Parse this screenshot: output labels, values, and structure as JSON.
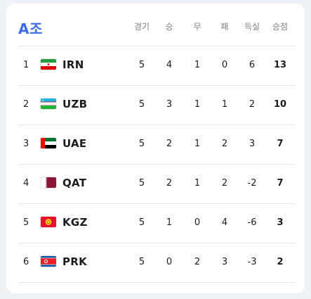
{
  "group": {
    "title": "A조"
  },
  "header": {
    "played": "경기",
    "won": "승",
    "draw": "무",
    "lost": "패",
    "gd": "득실",
    "pts": "승점"
  },
  "rows": [
    {
      "rank": "1",
      "team": "IRN",
      "flag": "iran-flag-icon",
      "played": "5",
      "won": "4",
      "draw": "1",
      "lost": "0",
      "gd": "6",
      "pts": "13"
    },
    {
      "rank": "2",
      "team": "UZB",
      "flag": "uzbekistan-flag-icon",
      "played": "5",
      "won": "3",
      "draw": "1",
      "lost": "1",
      "gd": "2",
      "pts": "10"
    },
    {
      "rank": "3",
      "team": "UAE",
      "flag": "uae-flag-icon",
      "played": "5",
      "won": "2",
      "draw": "1",
      "lost": "2",
      "gd": "3",
      "pts": "7"
    },
    {
      "rank": "4",
      "team": "QAT",
      "flag": "qatar-flag-icon",
      "played": "5",
      "won": "2",
      "draw": "1",
      "lost": "2",
      "gd": "-2",
      "pts": "7"
    },
    {
      "rank": "5",
      "team": "KGZ",
      "flag": "kyrgyzstan-flag-icon",
      "played": "5",
      "won": "1",
      "draw": "0",
      "lost": "4",
      "gd": "-6",
      "pts": "3"
    },
    {
      "rank": "6",
      "team": "PRK",
      "flag": "north-korea-flag-icon",
      "played": "5",
      "won": "0",
      "draw": "2",
      "lost": "3",
      "gd": "-3",
      "pts": "2"
    }
  ],
  "colors": {
    "accent": "#3b6cf0",
    "divider": "#e4e6eb"
  }
}
